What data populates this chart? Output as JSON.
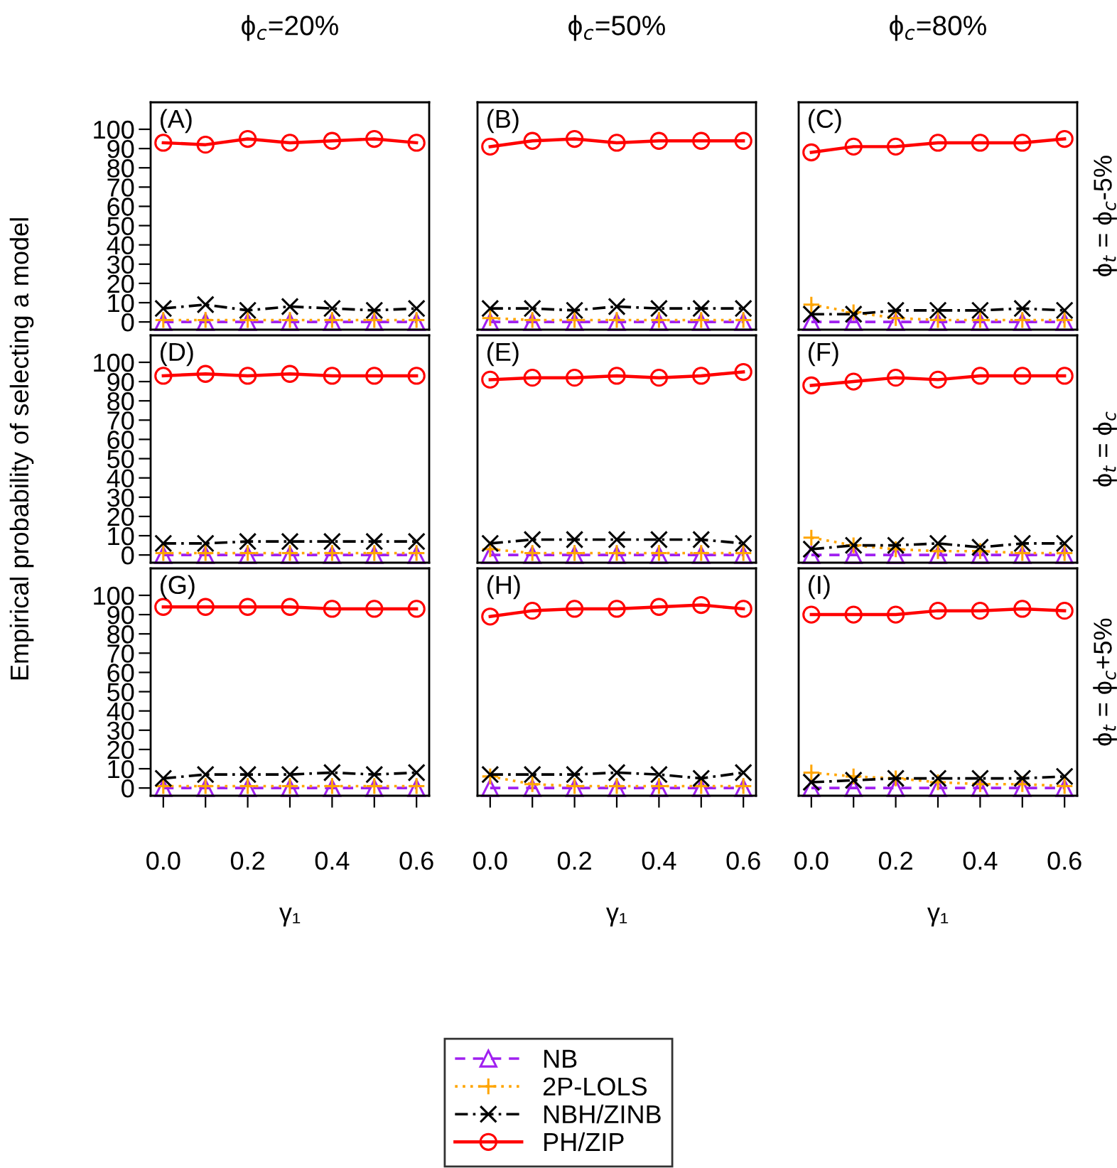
{
  "chart_data": [
    {
      "type": "line",
      "title": "ϕ$_{c}$=20%",
      "legend": "bottom",
      "annotations": [
        "(A)"
      ],
      "x": [
        0,
        0.1,
        0.2,
        0.3,
        0.4,
        0.5,
        0.6
      ],
      "xlim": [
        -0.03,
        0.63
      ],
      "ylim": [
        -4,
        114
      ],
      "yticks": [
        0,
        10,
        20,
        30,
        40,
        50,
        60,
        70,
        80,
        90,
        100
      ],
      "tick_labels": "y",
      "grid": false,
      "series": [
        {
          "name": "NB",
          "color": "#a020f0",
          "line_style": "dashed",
          "marker": "triangle",
          "values": [
            0,
            0,
            0,
            0,
            0,
            0,
            0
          ]
        },
        {
          "name": "2P-LOLS",
          "color": "#ffa500",
          "line_style": "dotted",
          "marker": "plus",
          "values": [
            1,
            1,
            1,
            1,
            1,
            1,
            1
          ]
        },
        {
          "name": "NBH/ZINB",
          "color": "#000000",
          "line_style": "dashdot",
          "marker": "cross",
          "values": [
            7,
            9,
            6,
            8,
            7,
            6,
            7
          ]
        },
        {
          "name": "PH/ZIP",
          "color": "#ff0000",
          "line_style": "solid",
          "marker": "circle",
          "values": [
            93,
            92,
            95,
            93,
            94,
            95,
            93
          ]
        }
      ]
    },
    {
      "type": "line",
      "title": "ϕ$_{c}$=50%",
      "annotations": [
        "(B)"
      ],
      "x": [
        0,
        0.1,
        0.2,
        0.3,
        0.4,
        0.5,
        0.6
      ],
      "xlim": [
        -0.03,
        0.63
      ],
      "ylim": [
        -4,
        114
      ],
      "tick_labels": false,
      "grid": false,
      "series": [
        {
          "color": "#a020f0",
          "line_style": "dashed",
          "marker": "triangle",
          "values": [
            0,
            0,
            0,
            0,
            0,
            0,
            0
          ]
        },
        {
          "color": "#ffa500",
          "line_style": "dotted",
          "marker": "plus",
          "values": [
            2,
            1,
            1,
            1,
            1,
            1,
            1
          ]
        },
        {
          "color": "#000000",
          "line_style": "dashdot",
          "marker": "cross",
          "values": [
            7,
            7,
            6,
            8,
            7,
            7,
            7
          ]
        },
        {
          "color": "#ff0000",
          "line_style": "solid",
          "marker": "circle",
          "values": [
            91,
            94,
            95,
            93,
            94,
            94,
            94
          ]
        }
      ]
    },
    {
      "type": "line",
      "title": "ϕ$_{c}$=80%",
      "y2label": "ϕ$_{t}$ = ϕ$_{c}$-5%",
      "annotations": [
        "(C)"
      ],
      "x": [
        0,
        0.1,
        0.2,
        0.3,
        0.4,
        0.5,
        0.6
      ],
      "xlim": [
        -0.03,
        0.63
      ],
      "ylim": [
        -4,
        114
      ],
      "tick_labels": false,
      "grid": false,
      "series": [
        {
          "color": "#a020f0",
          "line_style": "dashed",
          "marker": "triangle",
          "values": [
            0,
            0,
            0,
            0,
            0,
            0,
            0
          ]
        },
        {
          "color": "#ffa500",
          "line_style": "dotted",
          "marker": "plus",
          "values": [
            9,
            5,
            2,
            1,
            1,
            1,
            1
          ]
        },
        {
          "color": "#000000",
          "line_style": "dashdot",
          "marker": "cross",
          "values": [
            4,
            4,
            6,
            6,
            6,
            7,
            6
          ]
        },
        {
          "color": "#ff0000",
          "line_style": "solid",
          "marker": "circle",
          "values": [
            88,
            91,
            91,
            93,
            93,
            93,
            95
          ]
        }
      ]
    },
    {
      "type": "line",
      "ylabel": "Empirical probability of selecting a model",
      "annotations": [
        "(D)"
      ],
      "x": [
        0,
        0.1,
        0.2,
        0.3,
        0.4,
        0.5,
        0.6
      ],
      "xlim": [
        -0.03,
        0.63
      ],
      "ylim": [
        -4,
        114
      ],
      "yticks": [
        0,
        10,
        20,
        30,
        40,
        50,
        60,
        70,
        80,
        90,
        100
      ],
      "tick_labels": "y",
      "grid": false,
      "series": [
        {
          "color": "#a020f0",
          "line_style": "dashed",
          "marker": "triangle",
          "values": [
            0,
            0,
            0,
            0,
            0,
            0,
            0
          ]
        },
        {
          "color": "#ffa500",
          "line_style": "dotted",
          "marker": "plus",
          "values": [
            1,
            1,
            1,
            1,
            1,
            1,
            1
          ]
        },
        {
          "color": "#000000",
          "line_style": "dashdot",
          "marker": "cross",
          "values": [
            6,
            6,
            7,
            7,
            7,
            7,
            7
          ]
        },
        {
          "color": "#ff0000",
          "line_style": "solid",
          "marker": "circle",
          "values": [
            93,
            94,
            93,
            94,
            93,
            93,
            93
          ]
        }
      ]
    },
    {
      "type": "line",
      "annotations": [
        "(E)"
      ],
      "x": [
        0,
        0.1,
        0.2,
        0.3,
        0.4,
        0.5,
        0.6
      ],
      "xlim": [
        -0.03,
        0.63
      ],
      "ylim": [
        -4,
        114
      ],
      "tick_labels": false,
      "grid": false,
      "series": [
        {
          "color": "#a020f0",
          "line_style": "dashed",
          "marker": "triangle",
          "values": [
            0,
            0,
            0,
            0,
            0,
            0,
            0
          ]
        },
        {
          "color": "#ffa500",
          "line_style": "dotted",
          "marker": "plus",
          "values": [
            3,
            1,
            1,
            1,
            1,
            1,
            1
          ]
        },
        {
          "color": "#000000",
          "line_style": "dashdot",
          "marker": "cross",
          "values": [
            6,
            8,
            8,
            8,
            8,
            8,
            6
          ]
        },
        {
          "color": "#ff0000",
          "line_style": "solid",
          "marker": "circle",
          "values": [
            91,
            92,
            92,
            93,
            92,
            93,
            95
          ]
        }
      ]
    },
    {
      "type": "line",
      "y2label": "ϕ$_{t}$ = ϕ$_{c}$",
      "annotations": [
        "(F)"
      ],
      "x": [
        0,
        0.1,
        0.2,
        0.3,
        0.4,
        0.5,
        0.6
      ],
      "xlim": [
        -0.03,
        0.63
      ],
      "ylim": [
        -4,
        114
      ],
      "tick_labels": false,
      "grid": false,
      "series": [
        {
          "color": "#a020f0",
          "line_style": "dashed",
          "marker": "triangle",
          "values": [
            0,
            0,
            0,
            0,
            0,
            0,
            0
          ]
        },
        {
          "color": "#ffa500",
          "line_style": "dotted",
          "marker": "plus",
          "values": [
            9,
            5,
            3,
            2,
            2,
            1,
            1
          ]
        },
        {
          "color": "#000000",
          "line_style": "dashdot",
          "marker": "cross",
          "values": [
            3,
            5,
            5,
            6,
            4,
            6,
            6
          ]
        },
        {
          "color": "#ff0000",
          "line_style": "solid",
          "marker": "circle",
          "values": [
            88,
            90,
            92,
            91,
            93,
            93,
            93
          ]
        }
      ]
    },
    {
      "type": "line",
      "xlabel": "γ₁",
      "annotations": [
        "(G)"
      ],
      "x": [
        0,
        0.1,
        0.2,
        0.3,
        0.4,
        0.5,
        0.6
      ],
      "xlim": [
        -0.03,
        0.63
      ],
      "xticks": [
        {
          "value": 0,
          "label": "0.0"
        },
        {
          "value": 0.1,
          "label": null
        },
        0.2,
        {
          "value": 0.3,
          "label": null
        },
        0.4,
        {
          "value": 0.5,
          "label": null
        },
        0.6
      ],
      "ylim": [
        -4,
        114
      ],
      "yticks": [
        0,
        10,
        20,
        30,
        40,
        50,
        60,
        70,
        80,
        90,
        100
      ],
      "grid": false,
      "series": [
        {
          "color": "#a020f0",
          "line_style": "dashed",
          "marker": "triangle",
          "values": [
            0,
            0,
            0,
            0,
            0,
            0,
            0
          ]
        },
        {
          "color": "#ffa500",
          "line_style": "dotted",
          "marker": "plus",
          "values": [
            1,
            1,
            1,
            1,
            1,
            1,
            1
          ]
        },
        {
          "color": "#000000",
          "line_style": "dashdot",
          "marker": "cross",
          "values": [
            5,
            7,
            7,
            7,
            8,
            7,
            8
          ]
        },
        {
          "color": "#ff0000",
          "line_style": "solid",
          "marker": "circle",
          "values": [
            94,
            94,
            94,
            94,
            93,
            93,
            93
          ]
        }
      ]
    },
    {
      "type": "line",
      "xlabel": "γ₁",
      "annotations": [
        "(H)"
      ],
      "x": [
        0,
        0.1,
        0.2,
        0.3,
        0.4,
        0.5,
        0.6
      ],
      "xlim": [
        -0.03,
        0.63
      ],
      "xticks": [
        {
          "value": 0,
          "label": "0.0"
        },
        {
          "value": 0.1,
          "label": null
        },
        0.2,
        {
          "value": 0.3,
          "label": null
        },
        0.4,
        {
          "value": 0.5,
          "label": null
        },
        0.6
      ],
      "ylim": [
        -4,
        114
      ],
      "tick_labels": "x",
      "grid": false,
      "series": [
        {
          "color": "#a020f0",
          "line_style": "dashed",
          "marker": "triangle",
          "values": [
            0,
            0,
            0,
            0,
            0,
            0,
            0
          ]
        },
        {
          "color": "#ffa500",
          "line_style": "dotted",
          "marker": "plus",
          "values": [
            6,
            2,
            1,
            1,
            1,
            1,
            1
          ]
        },
        {
          "color": "#000000",
          "line_style": "dashdot",
          "marker": "cross",
          "values": [
            7,
            7,
            7,
            8,
            7,
            5,
            8
          ]
        },
        {
          "color": "#ff0000",
          "line_style": "solid",
          "marker": "circle",
          "values": [
            89,
            92,
            93,
            93,
            94,
            95,
            93
          ]
        }
      ]
    },
    {
      "type": "line",
      "xlabel": "γ₁",
      "y2label": "ϕ$_{t}$ = ϕ$_{c}$+5%",
      "annotations": [
        "(I)"
      ],
      "x": [
        0,
        0.1,
        0.2,
        0.3,
        0.4,
        0.5,
        0.6
      ],
      "xlim": [
        -0.03,
        0.63
      ],
      "xticks": [
        {
          "value": 0,
          "label": "0.0"
        },
        {
          "value": 0.1,
          "label": null
        },
        0.2,
        {
          "value": 0.3,
          "label": null
        },
        0.4,
        {
          "value": 0.5,
          "label": null
        },
        0.6
      ],
      "ylim": [
        -4,
        114
      ],
      "tick_labels": "x",
      "grid": false,
      "series": [
        {
          "color": "#a020f0",
          "line_style": "dashed",
          "marker": "triangle",
          "values": [
            0,
            0,
            0,
            0,
            0,
            0,
            0
          ]
        },
        {
          "color": "#ffa500",
          "line_style": "dotted",
          "marker": "plus",
          "values": [
            8,
            6,
            5,
            3,
            2,
            2,
            1
          ]
        },
        {
          "color": "#000000",
          "line_style": "dashdot",
          "marker": "cross",
          "values": [
            3,
            4,
            5,
            5,
            5,
            5,
            6
          ]
        },
        {
          "color": "#ff0000",
          "line_style": "solid",
          "marker": "circle",
          "values": [
            90,
            90,
            90,
            92,
            92,
            93,
            92
          ]
        }
      ]
    }
  ]
}
